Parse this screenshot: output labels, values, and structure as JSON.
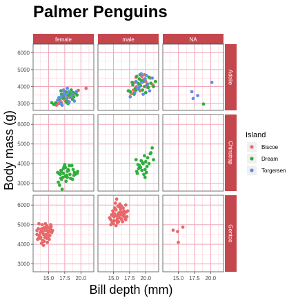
{
  "colors": {
    "strip_fill": "#c5474e",
    "strip_text": "#ffffff",
    "panel_border": "#4d4d4d",
    "grid_major": "#f2a7b9",
    "grid_minor": "#f9d3dc",
    "axis_text": "#4d4d4d"
  },
  "chart_data": {
    "type": "scatter",
    "title": "Palmer Penguins",
    "xlabel": "Bill depth (mm)",
    "ylabel": "Body mass (g)",
    "xlim": [
      12.6,
      22.0
    ],
    "ylim": [
      2600,
      6500
    ],
    "x_ticks": [
      15.0,
      17.5,
      20.0
    ],
    "x_tick_labels": [
      "15.0",
      "17.5",
      "20.0"
    ],
    "y_ticks": [
      3000,
      4000,
      5000,
      6000
    ],
    "y_tick_labels": [
      "3000",
      "4000",
      "5000",
      "6000"
    ],
    "grid": true,
    "facet_columns": [
      "female",
      "male",
      "NA"
    ],
    "facet_rows": [
      "Adelie",
      "Chinstrap",
      "Gentoo"
    ],
    "legend": {
      "title": "Island",
      "position": "right",
      "entries": [
        {
          "name": "Biscoe",
          "color": "#e8696b"
        },
        {
          "name": "Dream",
          "color": "#2fae3c"
        },
        {
          "name": "Torgersen",
          "color": "#5b8fe8"
        }
      ]
    },
    "points": [
      {
        "col": 0,
        "row": 0,
        "island": "Biscoe",
        "xy": [
          [
            17.5,
            3200
          ],
          [
            18.0,
            3400
          ],
          [
            16.2,
            2900
          ],
          [
            17.0,
            3050
          ],
          [
            18.6,
            3500
          ],
          [
            18.3,
            3350
          ],
          [
            17.8,
            3650
          ],
          [
            16.8,
            3150
          ],
          [
            17.2,
            3300
          ],
          [
            19.0,
            3600
          ],
          [
            16.5,
            3000
          ],
          [
            18.2,
            3500
          ],
          [
            17.4,
            3700
          ],
          [
            20.8,
            3900
          ],
          [
            19.6,
            3780
          ],
          [
            17.6,
            3250
          ]
        ]
      },
      {
        "col": 0,
        "row": 0,
        "island": "Dream",
        "xy": [
          [
            15.5,
            3050
          ],
          [
            15.8,
            2950
          ],
          [
            16.7,
            3300
          ],
          [
            17.1,
            3450
          ],
          [
            17.9,
            3150
          ],
          [
            18.4,
            3600
          ],
          [
            18.9,
            3400
          ],
          [
            18.1,
            3500
          ],
          [
            17.6,
            3700
          ],
          [
            16.6,
            3250
          ],
          [
            17.3,
            3350
          ],
          [
            19.4,
            3500
          ],
          [
            18.7,
            3250
          ],
          [
            17.0,
            3550
          ],
          [
            18.5,
            3800
          ],
          [
            16.1,
            3050
          ],
          [
            17.7,
            3100
          ],
          [
            18.8,
            3650
          ],
          [
            17.4,
            3450
          ],
          [
            16.9,
            3750
          ],
          [
            19.2,
            3600
          ],
          [
            18.0,
            3000
          ],
          [
            17.5,
            3550
          ]
        ]
      },
      {
        "col": 0,
        "row": 0,
        "island": "Torgersen",
        "xy": [
          [
            17.0,
            3450
          ],
          [
            17.8,
            3300
          ],
          [
            18.1,
            3700
          ],
          [
            16.4,
            3200
          ],
          [
            17.5,
            3600
          ],
          [
            19.0,
            3150
          ],
          [
            18.4,
            3400
          ],
          [
            16.9,
            3000
          ],
          [
            17.3,
            3800
          ],
          [
            18.7,
            3550
          ],
          [
            17.9,
            3900
          ],
          [
            16.6,
            3350
          ],
          [
            18.2,
            3100
          ],
          [
            17.6,
            3500
          ],
          [
            19.3,
            3700
          ],
          [
            17.1,
            2900
          ]
        ]
      },
      {
        "col": 1,
        "row": 0,
        "island": "Biscoe",
        "xy": [
          [
            18.1,
            3800
          ],
          [
            19.0,
            4150
          ],
          [
            19.6,
            4400
          ],
          [
            18.6,
            4000
          ],
          [
            20.0,
            4300
          ],
          [
            18.9,
            3900
          ],
          [
            19.4,
            4600
          ],
          [
            18.3,
            4250
          ],
          [
            20.7,
            4500
          ],
          [
            19.1,
            3750
          ],
          [
            21.1,
            4100
          ],
          [
            17.8,
            3600
          ],
          [
            19.8,
            4700
          ],
          [
            18.5,
            4550
          ],
          [
            20.3,
            3950
          ]
        ]
      },
      {
        "col": 1,
        "row": 0,
        "island": "Dream",
        "xy": [
          [
            17.3,
            3750
          ],
          [
            18.0,
            4100
          ],
          [
            18.4,
            3900
          ],
          [
            18.8,
            4200
          ],
          [
            19.2,
            4050
          ],
          [
            19.6,
            4300
          ],
          [
            19.9,
            4450
          ],
          [
            20.2,
            4100
          ],
          [
            20.8,
            4200
          ],
          [
            21.2,
            4000
          ],
          [
            18.6,
            4600
          ],
          [
            19.5,
            3800
          ],
          [
            19.0,
            4450
          ],
          [
            18.2,
            3550
          ],
          [
            17.6,
            3700
          ],
          [
            20.0,
            3650
          ],
          [
            18.9,
            3900
          ],
          [
            19.3,
            4350
          ],
          [
            20.5,
            4550
          ],
          [
            17.9,
            4250
          ],
          [
            19.8,
            4000
          ],
          [
            18.5,
            3800
          ],
          [
            20.4,
            3950
          ],
          [
            19.1,
            4700
          ],
          [
            21.5,
            4300
          ]
        ]
      },
      {
        "col": 1,
        "row": 0,
        "island": "Torgersen",
        "xy": [
          [
            18.7,
            3900
          ],
          [
            19.4,
            4250
          ],
          [
            20.1,
            4650
          ],
          [
            18.3,
            3650
          ],
          [
            19.8,
            4400
          ],
          [
            20.6,
            3750
          ],
          [
            19.0,
            4000
          ],
          [
            17.6,
            3400
          ],
          [
            20.3,
            4150
          ],
          [
            18.9,
            3850
          ],
          [
            19.6,
            3550
          ],
          [
            21.0,
            4500
          ],
          [
            18.5,
            4300
          ],
          [
            19.3,
            4750
          ]
        ]
      },
      {
        "col": 2,
        "row": 0,
        "island": "Dream",
        "xy": [
          [
            18.9,
            2975
          ]
        ]
      },
      {
        "col": 2,
        "row": 0,
        "island": "Torgersen",
        "xy": [
          [
            17.3,
            3300
          ],
          [
            17.1,
            3700
          ],
          [
            18.0,
            3475
          ],
          [
            20.2,
            4250
          ]
        ]
      },
      {
        "col": 0,
        "row": 1,
        "island": "Dream",
        "xy": [
          [
            16.6,
            3500
          ],
          [
            17.2,
            3300
          ],
          [
            17.9,
            3600
          ],
          [
            17.6,
            3800
          ],
          [
            18.3,
            3450
          ],
          [
            18.8,
            3700
          ],
          [
            19.4,
            3500
          ],
          [
            17.0,
            3200
          ],
          [
            16.9,
            3650
          ],
          [
            17.3,
            3750
          ],
          [
            18.6,
            3900
          ],
          [
            17.5,
            3950
          ],
          [
            19.0,
            3550
          ],
          [
            16.5,
            3050
          ],
          [
            17.1,
            2700
          ],
          [
            17.8,
            3400
          ],
          [
            16.7,
            2900
          ],
          [
            18.1,
            3650
          ],
          [
            18.4,
            3250
          ],
          [
            17.4,
            3850
          ],
          [
            19.5,
            3600
          ],
          [
            17.7,
            3100
          ],
          [
            16.8,
            3450
          ],
          [
            18.9,
            3400
          ],
          [
            18.0,
            3700
          ],
          [
            16.4,
            3550
          ],
          [
            17.6,
            3350
          ],
          [
            18.7,
            3200
          ],
          [
            17.3,
            3500
          ],
          [
            16.9,
            3250
          ],
          [
            18.2,
            3900
          ],
          [
            17.0,
            3600
          ],
          [
            19.1,
            3450
          ],
          [
            17.9,
            3300
          ]
        ]
      },
      {
        "col": 1,
        "row": 1,
        "island": "Dream",
        "xy": [
          [
            18.6,
            3600
          ],
          [
            19.0,
            3900
          ],
          [
            19.5,
            4050
          ],
          [
            19.9,
            3700
          ],
          [
            20.3,
            4300
          ],
          [
            20.7,
            4500
          ],
          [
            21.0,
            4800
          ],
          [
            20.0,
            4100
          ],
          [
            19.2,
            3800
          ],
          [
            18.8,
            3950
          ],
          [
            19.7,
            3450
          ],
          [
            20.5,
            4000
          ],
          [
            18.5,
            4200
          ],
          [
            19.4,
            3650
          ],
          [
            20.2,
            3850
          ],
          [
            21.2,
            4200
          ],
          [
            19.8,
            4400
          ],
          [
            18.9,
            3750
          ],
          [
            20.1,
            3550
          ],
          [
            19.6,
            4000
          ],
          [
            19.3,
            4150
          ],
          [
            20.8,
            4550
          ],
          [
            18.7,
            3500
          ],
          [
            19.9,
            3300
          ]
        ]
      },
      {
        "col": 0,
        "row": 2,
        "island": "Biscoe",
        "xy": [
          [
            13.2,
            4500
          ],
          [
            13.4,
            4800
          ],
          [
            13.7,
            4300
          ],
          [
            13.9,
            4650
          ],
          [
            14.1,
            4200
          ],
          [
            14.3,
            4850
          ],
          [
            14.5,
            4400
          ],
          [
            14.7,
            4950
          ],
          [
            14.9,
            4550
          ],
          [
            15.1,
            4250
          ],
          [
            15.3,
            4750
          ],
          [
            15.5,
            4600
          ],
          [
            13.5,
            5050
          ],
          [
            14.0,
            5000
          ],
          [
            14.8,
            4100
          ],
          [
            14.2,
            3950
          ],
          [
            13.6,
            4450
          ],
          [
            15.0,
            4850
          ],
          [
            14.4,
            4700
          ],
          [
            13.8,
            4350
          ],
          [
            14.6,
            4500
          ],
          [
            15.4,
            4900
          ],
          [
            13.3,
            4250
          ],
          [
            14.5,
            5050
          ],
          [
            13.9,
            4050
          ],
          [
            15.2,
            4450
          ],
          [
            14.1,
            4600
          ],
          [
            14.7,
            4300
          ],
          [
            13.2,
            4700
          ],
          [
            14.3,
            4150
          ],
          [
            15.6,
            4700
          ],
          [
            14.0,
            4800
          ],
          [
            13.7,
            4600
          ],
          [
            14.8,
            4700
          ],
          [
            14.2,
            4500
          ],
          [
            15.0,
            4400
          ],
          [
            13.5,
            4350
          ],
          [
            14.6,
            4850
          ],
          [
            15.3,
            5000
          ],
          [
            14.4,
            4350
          ],
          [
            13.8,
            4750
          ],
          [
            15.1,
            4650
          ]
        ]
      },
      {
        "col": 1,
        "row": 2,
        "island": "Biscoe",
        "xy": [
          [
            14.5,
            5300
          ],
          [
            14.7,
            5500
          ],
          [
            14.9,
            5700
          ],
          [
            15.1,
            5200
          ],
          [
            15.3,
            5800
          ],
          [
            15.5,
            5450
          ],
          [
            15.7,
            5950
          ],
          [
            15.9,
            5350
          ],
          [
            16.1,
            5650
          ],
          [
            16.3,
            5250
          ],
          [
            16.5,
            5850
          ],
          [
            16.7,
            5550
          ],
          [
            16.9,
            6000
          ],
          [
            17.1,
            5400
          ],
          [
            15.0,
            5050
          ],
          [
            15.6,
            5100
          ],
          [
            16.2,
            5300
          ],
          [
            14.6,
            5000
          ],
          [
            15.8,
            5600
          ],
          [
            16.4,
            5150
          ],
          [
            15.2,
            5550
          ],
          [
            16.0,
            6050
          ],
          [
            15.4,
            5750
          ],
          [
            16.6,
            5700
          ],
          [
            15.9,
            5900
          ],
          [
            14.8,
            5150
          ],
          [
            16.8,
            5350
          ],
          [
            15.1,
            5400
          ],
          [
            16.3,
            5500
          ],
          [
            15.5,
            5200
          ],
          [
            14.4,
            5350
          ],
          [
            16.1,
            5800
          ],
          [
            15.7,
            5500
          ],
          [
            15.3,
            6100
          ],
          [
            16.5,
            5450
          ],
          [
            17.0,
            5650
          ],
          [
            15.0,
            5600
          ],
          [
            16.9,
            5250
          ],
          [
            15.6,
            5300
          ],
          [
            16.2,
            5950
          ],
          [
            14.9,
            5450
          ],
          [
            15.8,
            5150
          ],
          [
            16.4,
            5600
          ],
          [
            15.2,
            5850
          ],
          [
            16.7,
            5400
          ],
          [
            15.4,
            4950
          ],
          [
            16.0,
            5500
          ],
          [
            17.2,
            5700
          ],
          [
            15.5,
            6300
          ],
          [
            14.6,
            5250
          ]
        ]
      },
      {
        "col": 2,
        "row": 2,
        "island": "Biscoe",
        "xy": [
          [
            14.2,
            4720
          ],
          [
            14.9,
            4650
          ],
          [
            15.7,
            4875
          ],
          [
            15.0,
            4100
          ]
        ]
      }
    ]
  }
}
